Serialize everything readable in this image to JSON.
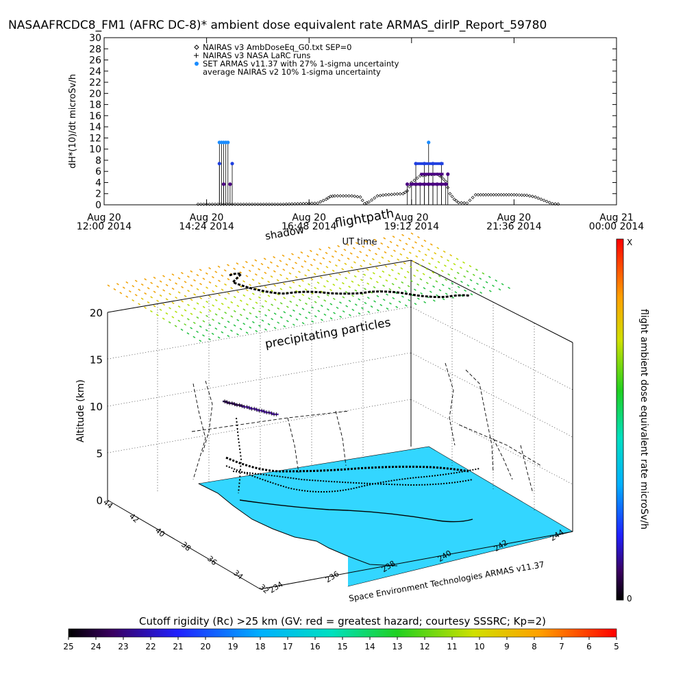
{
  "title": "NASAAFRCDC8_FM1 (AFRC DC-8)* ambient dose equivalent rate ARMAS_dirlP_Report_59780",
  "colors": {
    "nairas_v3": "#000000",
    "larc": "#000000",
    "armas": "#1a8cff",
    "armas_low": "#4b0082",
    "ocean": "#33d6ff",
    "land": "#ffffff"
  },
  "chart_data": [
    {
      "type": "scatter",
      "ylabel": "dH*(10)/dt microSv/h",
      "xlabel": "UT time",
      "ylim": [
        0,
        30
      ],
      "xlim": [
        12.0,
        24.0
      ],
      "yticks": [
        0,
        2,
        4,
        6,
        8,
        10,
        12,
        14,
        16,
        18,
        20,
        22,
        24,
        26,
        28,
        30
      ],
      "xticks": [
        {
          "value": 12.0,
          "line1": "Aug 20",
          "line2": "12:00 2014"
        },
        {
          "value": 14.4,
          "line1": "Aug 20",
          "line2": "14:24 2014"
        },
        {
          "value": 16.8,
          "line1": "Aug 20",
          "line2": "16:48 2014"
        },
        {
          "value": 19.2,
          "line1": "Aug 20",
          "line2": "19:12 2014"
        },
        {
          "value": 21.6,
          "line1": "Aug 20",
          "line2": "21:36 2014"
        },
        {
          "value": 24.0,
          "line1": "Aug 21",
          "line2": "00:00 2014"
        }
      ],
      "legend": [
        {
          "marker": "diamond",
          "label": "NAIRAS v3 AmbDoseEq_G0.txt SEP=0"
        },
        {
          "marker": "plus",
          "label": "NAIRAS v3 NASA LaRC runs"
        },
        {
          "marker": "dot",
          "label": "SET ARMAS v11.37 with 27% 1-sigma uncertainty"
        },
        {
          "marker": "none",
          "label": "average NAIRAS v2 10% 1-sigma uncertainty"
        }
      ],
      "series": [
        {
          "marker": "diamond",
          "x": [
            14.2,
            14.6,
            15.0,
            15.4,
            15.8,
            16.2,
            16.6,
            17.0,
            17.2,
            17.3,
            17.4,
            17.6,
            17.8,
            18.0,
            18.1,
            18.2,
            18.4,
            18.6,
            18.8,
            19.0,
            19.1,
            19.2,
            19.4,
            19.6,
            19.8,
            19.9,
            20.0,
            20.1,
            20.2,
            20.3,
            20.5,
            20.7,
            21.0,
            21.3,
            21.6,
            21.9,
            22.1,
            22.3,
            22.5,
            22.7
          ],
          "y": [
            0.1,
            0.1,
            0.1,
            0.1,
            0.1,
            0.1,
            0.2,
            0.3,
            1.0,
            1.5,
            1.6,
            1.6,
            1.6,
            1.4,
            0.2,
            0.5,
            1.6,
            1.8,
            1.9,
            2.0,
            2.5,
            4.0,
            5.2,
            5.4,
            5.5,
            5.0,
            4.2,
            2.0,
            1.0,
            0.4,
            0.3,
            1.8,
            1.8,
            1.8,
            1.8,
            1.7,
            1.4,
            0.8,
            0.2,
            0.1
          ]
        },
        {
          "marker": "dot",
          "x": [
            14.7,
            14.75,
            14.8,
            14.85,
            14.9,
            15.0,
            14.7,
            14.8,
            14.95,
            19.1,
            19.2,
            19.3,
            19.4,
            19.5,
            19.6,
            19.7,
            19.8,
            19.9,
            20.0,
            19.3,
            19.5,
            19.7,
            19.9,
            20.05,
            19.6
          ],
          "y": [
            11.2,
            11.2,
            11.2,
            11.2,
            11.2,
            7.4,
            7.4,
            3.7,
            3.7,
            3.7,
            3.7,
            3.7,
            3.7,
            3.7,
            3.7,
            3.7,
            3.7,
            3.7,
            3.7,
            7.4,
            7.4,
            7.4,
            7.4,
            5.5,
            11.2
          ]
        }
      ]
    },
    {
      "type": "scatter",
      "title": "flightpath",
      "ylabel": "Altitude (km)",
      "zticks": [
        0,
        5,
        10,
        15,
        20
      ],
      "latitude_ticks": [
        32,
        34,
        36,
        38,
        40,
        42,
        44
      ],
      "longitude_ticks": [
        234,
        236,
        238,
        240,
        242,
        244
      ],
      "colorbar": {
        "label": "flight ambient dose equivalent rate microSv/h",
        "top_label": "X",
        "bottom_label": "0"
      },
      "annotations": [
        "shadow",
        "precipitating particles"
      ],
      "credit": "Space Environment Technologies ARMAS v11.37"
    },
    {
      "type": "heatmap",
      "title": "Cutoff rigidity (Rc) >25 km (GV: red = greatest hazard; courtesy SSSRC; Kp=2)",
      "ticks": [
        25,
        24,
        23,
        22,
        21,
        20,
        19,
        18,
        17,
        16,
        15,
        14,
        13,
        12,
        11,
        10,
        9,
        8,
        7,
        6,
        5
      ]
    }
  ]
}
